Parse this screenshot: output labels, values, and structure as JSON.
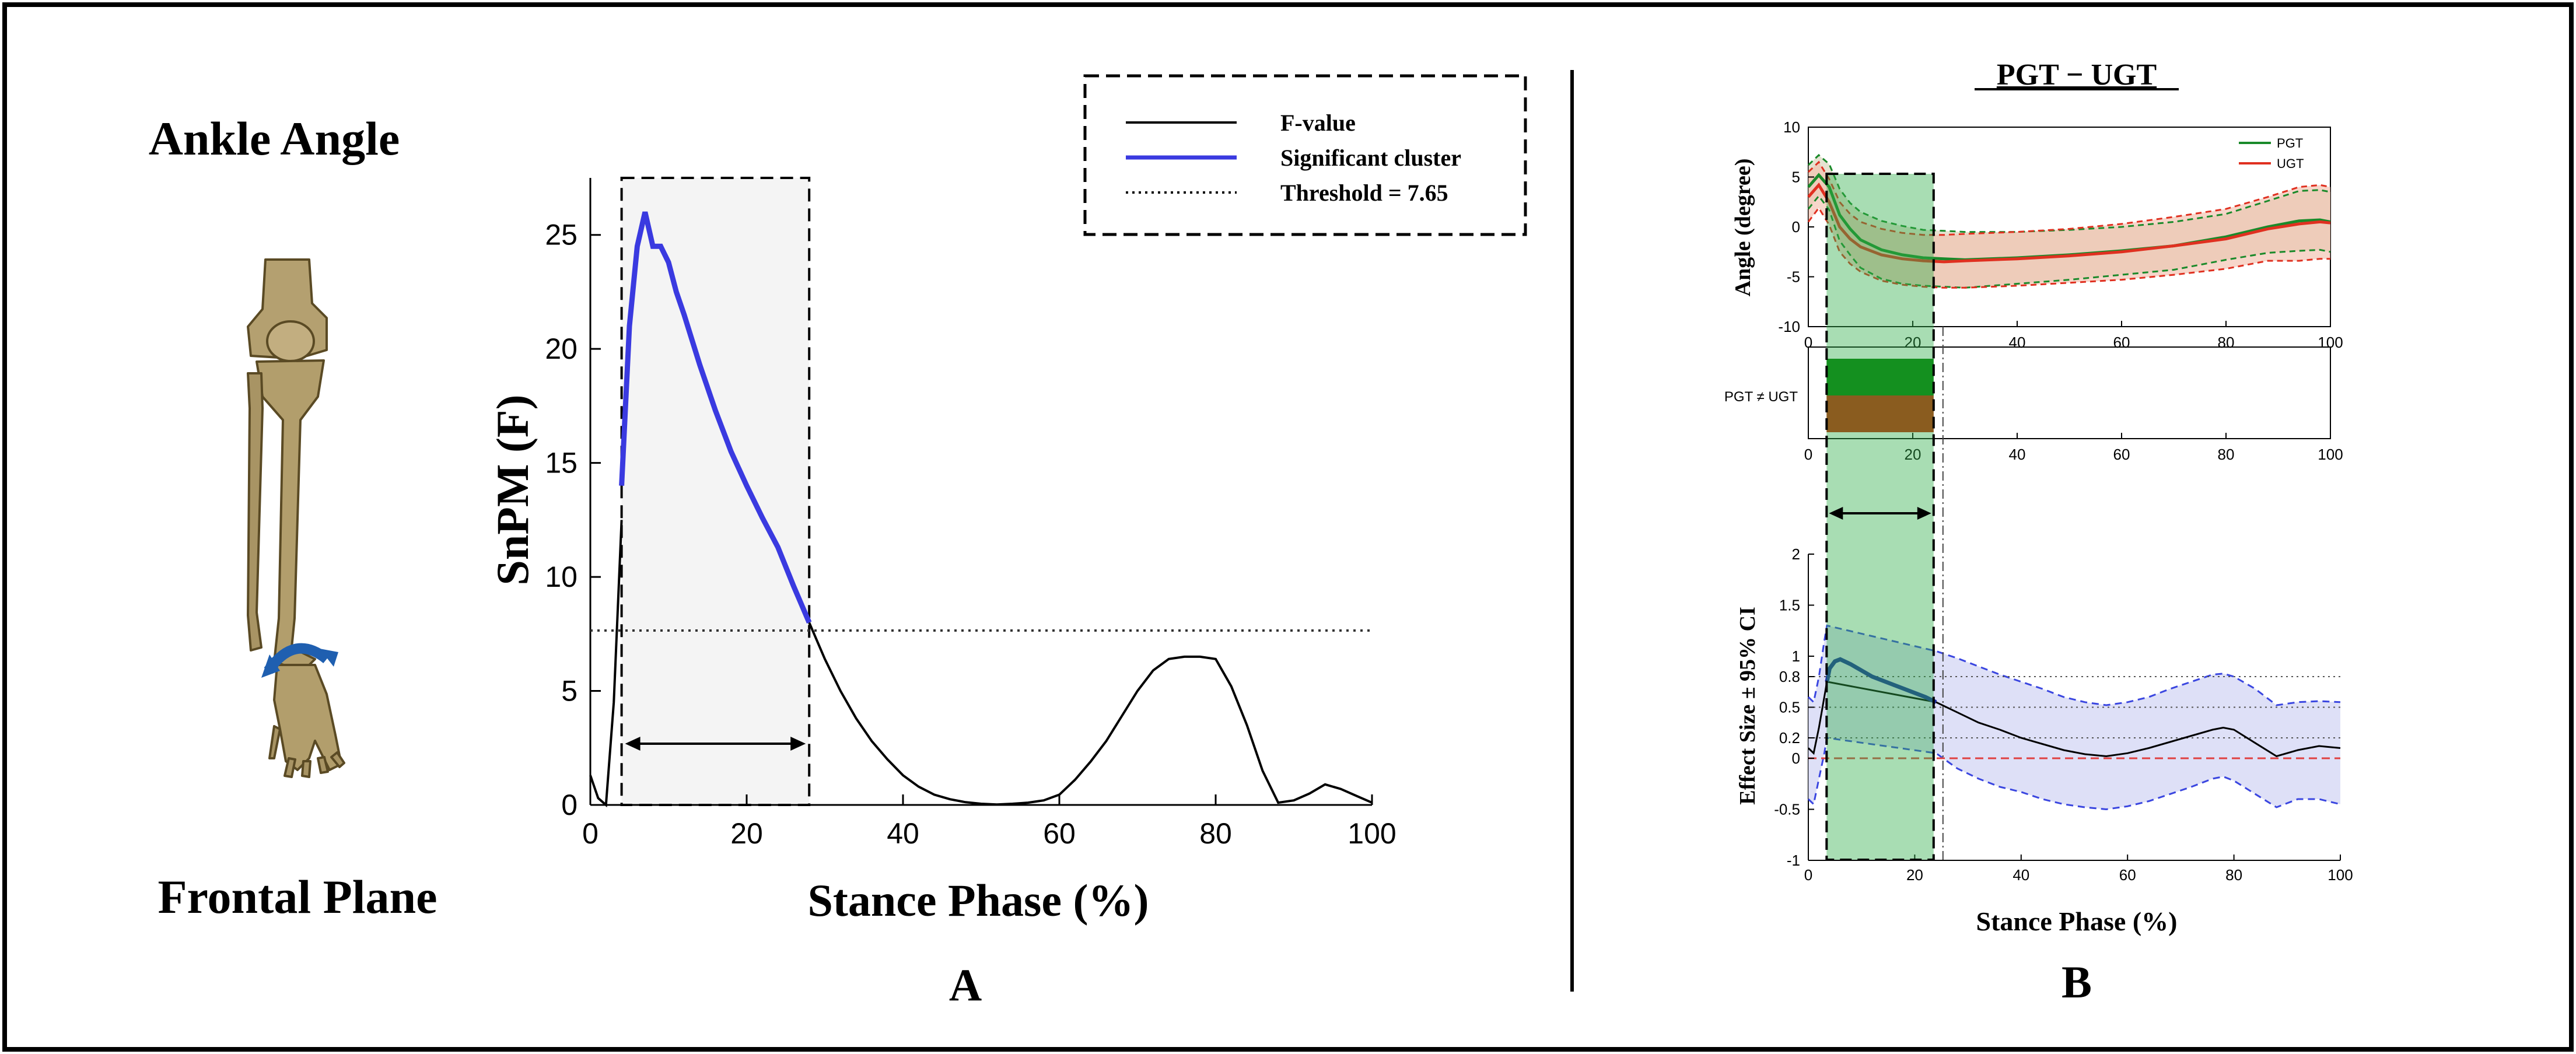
{
  "panel_left": {
    "title": "Ankle Angle",
    "plane": "Frontal Plane",
    "icon": "lower-leg-skeleton-icon"
  },
  "panel_a": {
    "label": "A",
    "chart_data": {
      "type": "line",
      "xlabel": "Stance Phase (%)",
      "ylabel": "SnPM (F)",
      "xlim": [
        0,
        100
      ],
      "ylim": [
        0,
        27.5
      ],
      "xticks": [
        "0",
        "20",
        "40",
        "60",
        "80",
        "100"
      ],
      "yticks": [
        "0",
        "5",
        "10",
        "15",
        "20",
        "25"
      ],
      "legend": {
        "placement": "top-right",
        "items": [
          "F-value",
          "Significant cluster",
          "Threshold = 7.65"
        ]
      },
      "threshold": 7.65,
      "cluster": [
        4,
        28
      ],
      "series": [
        {
          "name": "F-value",
          "color": "#000000",
          "x": [
            0,
            1,
            2,
            3,
            4,
            28,
            30,
            32,
            34,
            36,
            38,
            40,
            42,
            44,
            46,
            48,
            50,
            52,
            54,
            56,
            58,
            60,
            62,
            64,
            66,
            68,
            70,
            72,
            74,
            76,
            78,
            80,
            82,
            84,
            86,
            88,
            90,
            92,
            94,
            96,
            98,
            100
          ],
          "y": [
            1.3,
            0.3,
            0.0,
            4.5,
            12.5,
            8.0,
            6.4,
            5.0,
            3.8,
            2.8,
            2.0,
            1.3,
            0.8,
            0.45,
            0.25,
            0.12,
            0.05,
            0.02,
            0.05,
            0.1,
            0.2,
            0.45,
            1.1,
            1.9,
            2.8,
            3.9,
            5.0,
            5.9,
            6.4,
            6.5,
            6.5,
            6.4,
            5.2,
            3.5,
            1.5,
            0.1,
            0.2,
            0.5,
            0.9,
            0.7,
            0.4,
            0.1
          ]
        },
        {
          "name": "Significant cluster",
          "color": "#3a3ae0",
          "x": [
            4,
            5,
            6,
            7,
            8,
            9,
            10,
            11,
            12,
            14,
            16,
            18,
            20,
            22,
            24,
            26,
            27,
            28
          ],
          "y": [
            14.0,
            21.0,
            24.5,
            26.0,
            24.5,
            24.5,
            23.8,
            22.5,
            21.5,
            19.3,
            17.3,
            15.5,
            14.0,
            12.6,
            11.3,
            9.6,
            8.8,
            8.0
          ]
        }
      ]
    }
  },
  "panel_b": {
    "label": "B",
    "title": "PGT − UGT",
    "xlabel": "Stance Phase (%)",
    "top": {
      "chart_data": {
        "type": "line",
        "ylabel": "Angle (degree)",
        "xlim": [
          0,
          100
        ],
        "ylim": [
          -10,
          10
        ],
        "xticks": [
          "0",
          "20",
          "40",
          "60",
          "80",
          "100"
        ],
        "yticks": [
          "-10",
          "-5",
          "0",
          "5",
          "10"
        ],
        "legend": {
          "placement": "top-right",
          "items": [
            "PGT",
            "UGT"
          ]
        },
        "series": [
          {
            "name": "PGT",
            "color": "#1a8a2a",
            "x": [
              0,
              2,
              4,
              6,
              8,
              10,
              14,
              18,
              22,
              26,
              30,
              40,
              50,
              60,
              70,
              80,
              88,
              94,
              98,
              100
            ],
            "y": [
              4.0,
              5.2,
              4.0,
              1.2,
              -0.2,
              -1.3,
              -2.3,
              -2.8,
              -3.1,
              -3.2,
              -3.3,
              -3.1,
              -2.8,
              -2.4,
              -1.9,
              -1.0,
              0.0,
              0.6,
              0.7,
              0.5
            ],
            "upper": [
              6.2,
              7.2,
              6.3,
              3.8,
              2.4,
              1.5,
              0.6,
              0.1,
              -0.3,
              -0.4,
              -0.5,
              -0.5,
              -0.3,
              0.0,
              0.5,
              1.3,
              2.6,
              3.6,
              3.7,
              3.5
            ],
            "lower": [
              1.8,
              3.1,
              1.7,
              -1.4,
              -2.8,
              -4.1,
              -5.2,
              -5.7,
              -5.9,
              -6.0,
              -6.1,
              -5.7,
              -5.3,
              -4.8,
              -4.3,
              -3.3,
              -2.6,
              -2.4,
              -2.3,
              -2.5
            ]
          },
          {
            "name": "UGT",
            "color": "#e03020",
            "x": [
              0,
              2,
              4,
              6,
              8,
              10,
              14,
              18,
              22,
              26,
              30,
              40,
              50,
              60,
              70,
              80,
              88,
              94,
              98,
              100
            ],
            "y": [
              3.0,
              4.2,
              2.5,
              0.0,
              -1.2,
              -2.0,
              -2.8,
              -3.2,
              -3.4,
              -3.5,
              -3.4,
              -3.2,
              -2.9,
              -2.5,
              -1.9,
              -1.2,
              -0.2,
              0.3,
              0.5,
              0.4
            ],
            "upper": [
              5.5,
              6.5,
              4.8,
              2.5,
              1.3,
              0.5,
              -0.2,
              -0.6,
              -0.8,
              -0.8,
              -0.7,
              -0.5,
              -0.2,
              0.3,
              1.0,
              1.8,
              3.0,
              4.0,
              4.2,
              4.0
            ],
            "lower": [
              0.5,
              1.9,
              0.2,
              -2.5,
              -3.7,
              -4.5,
              -5.4,
              -5.8,
              -6.0,
              -6.1,
              -6.1,
              -5.9,
              -5.6,
              -5.3,
              -4.8,
              -4.2,
              -3.4,
              -3.4,
              -3.2,
              -3.2
            ]
          }
        ],
        "cluster": [
          3.5,
          24
        ]
      }
    },
    "middle": {
      "label": "PGT ≠ UGT",
      "xticks": [
        "0",
        "20",
        "40",
        "60",
        "80",
        "100"
      ],
      "cluster": [
        3.5,
        24
      ],
      "colors": [
        "#007a00",
        "#cc2200"
      ]
    },
    "bottom": {
      "chart_data": {
        "type": "line",
        "ylabel": "Effect Size ± 95% CI",
        "xlim": [
          0,
          100
        ],
        "ylim": [
          -1,
          2
        ],
        "xticks": [
          "0",
          "20",
          "40",
          "60",
          "80",
          "100"
        ],
        "yticks": [
          "-1",
          "-0.5",
          "0",
          "0.2",
          "0.5",
          "0.8",
          "1",
          "1.5",
          "2"
        ],
        "reference_lines": [
          0.2,
          0.5,
          0.8
        ],
        "zero_line": 0,
        "cluster": [
          3.5,
          24
        ],
        "series": [
          {
            "name": "Effect Size",
            "color": "#000000",
            "x": [
              0,
              1,
              2,
              3,
              3.5,
              24,
              28,
              32,
              36,
              40,
              44,
              48,
              52,
              56,
              60,
              64,
              68,
              72,
              76,
              78,
              80,
              84,
              88,
              92,
              96,
              100
            ],
            "y": [
              0.1,
              0.05,
              0.3,
              0.6,
              0.75,
              0.55,
              0.45,
              0.35,
              0.28,
              0.2,
              0.14,
              0.08,
              0.04,
              0.02,
              0.05,
              0.1,
              0.16,
              0.22,
              0.28,
              0.3,
              0.28,
              0.15,
              0.02,
              0.08,
              0.12,
              0.1
            ],
            "upper": [
              0.6,
              0.55,
              0.8,
              1.15,
              1.3,
              1.05,
              0.98,
              0.9,
              0.82,
              0.75,
              0.68,
              0.6,
              0.55,
              0.52,
              0.55,
              0.6,
              0.68,
              0.75,
              0.82,
              0.83,
              0.8,
              0.68,
              0.52,
              0.55,
              0.56,
              0.55
            ],
            "lower": [
              -0.4,
              -0.45,
              -0.2,
              0.05,
              0.2,
              0.05,
              -0.1,
              -0.2,
              -0.28,
              -0.33,
              -0.4,
              -0.45,
              -0.48,
              -0.5,
              -0.47,
              -0.42,
              -0.35,
              -0.28,
              -0.2,
              -0.18,
              -0.22,
              -0.35,
              -0.48,
              -0.4,
              -0.4,
              -0.45
            ]
          },
          {
            "name": "Significant effect",
            "color": "#1a2aa0",
            "x": [
              3.5,
              4,
              5,
              6,
              8,
              10,
              12,
              14,
              16,
              18,
              20,
              22,
              24
            ],
            "y": [
              0.75,
              0.88,
              0.95,
              0.97,
              0.92,
              0.86,
              0.8,
              0.76,
              0.72,
              0.68,
              0.64,
              0.6,
              0.55
            ]
          }
        ]
      }
    }
  }
}
